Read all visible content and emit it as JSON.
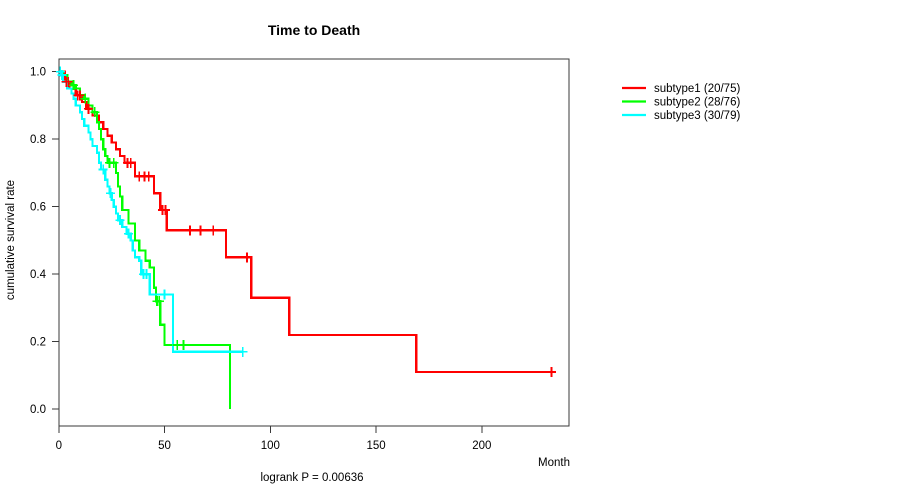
{
  "chart_data": {
    "type": "line",
    "subtype": "kaplan-meier-step-curves",
    "title": "Time to Death",
    "xlabel": "Month",
    "ylabel": "cumulative survival rate",
    "annotation": "logrank P = 0.00636",
    "xlim": [
      0,
      241
    ],
    "ylim": [
      0.0,
      1.0
    ],
    "x_ticks": [
      0,
      50,
      100,
      150,
      200
    ],
    "x_tick_labels": [
      "0",
      "50",
      "100",
      "150",
      "200"
    ],
    "y_ticks": [
      0.0,
      0.2,
      0.4,
      0.6,
      0.8,
      1.0
    ],
    "y_tick_labels": [
      "0.0",
      "0.2",
      "0.4",
      "0.6",
      "0.8",
      "1.0"
    ],
    "grid": false,
    "legend_position": "right-outside",
    "series": [
      {
        "name": "subtype1 (20/75)",
        "color": "#ff0000",
        "start": [
          0,
          1.0
        ],
        "end_time": 233,
        "steps": [
          [
            3,
            0.97
          ],
          [
            5,
            0.95
          ],
          [
            8,
            0.93
          ],
          [
            11,
            0.91
          ],
          [
            13,
            0.89
          ],
          [
            16,
            0.87
          ],
          [
            19,
            0.85
          ],
          [
            21,
            0.83
          ],
          [
            23,
            0.81
          ],
          [
            25,
            0.79
          ],
          [
            27,
            0.77
          ],
          [
            29,
            0.75
          ],
          [
            31,
            0.73
          ],
          [
            36,
            0.69
          ],
          [
            45,
            0.64
          ],
          [
            48,
            0.59
          ],
          [
            51,
            0.53
          ],
          [
            79,
            0.45
          ],
          [
            91,
            0.33
          ],
          [
            109,
            0.22
          ],
          [
            169,
            0.11
          ]
        ],
        "censors": [
          [
            3.5,
            0.97
          ],
          [
            4.5,
            0.97
          ],
          [
            9,
            0.93
          ],
          [
            10,
            0.93
          ],
          [
            14,
            0.89
          ],
          [
            32.5,
            0.73
          ],
          [
            34,
            0.73
          ],
          [
            38,
            0.69
          ],
          [
            40.5,
            0.69
          ],
          [
            42.5,
            0.69
          ],
          [
            49,
            0.59
          ],
          [
            50.5,
            0.59
          ],
          [
            62,
            0.53
          ],
          [
            67,
            0.53
          ],
          [
            73,
            0.53
          ],
          [
            89,
            0.45
          ],
          [
            233,
            0.11
          ]
        ]
      },
      {
        "name": "subtype2 (28/76)",
        "color": "#00ff00",
        "start": [
          0,
          1.0
        ],
        "end_time": 81,
        "steps": [
          [
            2,
            0.99
          ],
          [
            4,
            0.97
          ],
          [
            6,
            0.96
          ],
          [
            8,
            0.95
          ],
          [
            10,
            0.93
          ],
          [
            12,
            0.92
          ],
          [
            14,
            0.9
          ],
          [
            16,
            0.88
          ],
          [
            18,
            0.85
          ],
          [
            19,
            0.83
          ],
          [
            20,
            0.8
          ],
          [
            21,
            0.77
          ],
          [
            22,
            0.75
          ],
          [
            23,
            0.73
          ],
          [
            27,
            0.7
          ],
          [
            28,
            0.66
          ],
          [
            29,
            0.63
          ],
          [
            30,
            0.59
          ],
          [
            33,
            0.55
          ],
          [
            36,
            0.5
          ],
          [
            38,
            0.47
          ],
          [
            41,
            0.44
          ],
          [
            43,
            0.42
          ],
          [
            45,
            0.36
          ],
          [
            46,
            0.32
          ],
          [
            48,
            0.25
          ],
          [
            50,
            0.19
          ],
          [
            81,
            0.0
          ]
        ],
        "censors": [
          [
            7,
            0.96
          ],
          [
            12.5,
            0.92
          ],
          [
            17,
            0.88
          ],
          [
            24,
            0.73
          ],
          [
            26,
            0.73
          ],
          [
            46.5,
            0.32
          ],
          [
            47.5,
            0.32
          ],
          [
            56,
            0.19
          ],
          [
            59,
            0.19
          ]
        ]
      },
      {
        "name": "subtype3 (30/79)",
        "color": "#00ffff",
        "start": [
          0,
          1.0
        ],
        "end_time": 87,
        "steps": [
          [
            1,
            0.99
          ],
          [
            2,
            0.97
          ],
          [
            4,
            0.95
          ],
          [
            6,
            0.935
          ],
          [
            7,
            0.92
          ],
          [
            8,
            0.9
          ],
          [
            10,
            0.88
          ],
          [
            11,
            0.86
          ],
          [
            12,
            0.84
          ],
          [
            14,
            0.82
          ],
          [
            15,
            0.8
          ],
          [
            16,
            0.78
          ],
          [
            18,
            0.76
          ],
          [
            19,
            0.73
          ],
          [
            20,
            0.71
          ],
          [
            22,
            0.68
          ],
          [
            23,
            0.66
          ],
          [
            24,
            0.64
          ],
          [
            25,
            0.62
          ],
          [
            26,
            0.6
          ],
          [
            27,
            0.58
          ],
          [
            28,
            0.56
          ],
          [
            30,
            0.54
          ],
          [
            32,
            0.52
          ],
          [
            34,
            0.5
          ],
          [
            35,
            0.47
          ],
          [
            36,
            0.45
          ],
          [
            38,
            0.44
          ],
          [
            39,
            0.4
          ],
          [
            43,
            0.34
          ],
          [
            54,
            0.17
          ]
        ],
        "censors": [
          [
            0.7,
            1.0
          ],
          [
            1.5,
            0.99
          ],
          [
            21,
            0.71
          ],
          [
            24.5,
            0.64
          ],
          [
            29,
            0.56
          ],
          [
            33,
            0.52
          ],
          [
            40,
            0.4
          ],
          [
            41.5,
            0.4
          ],
          [
            50,
            0.34
          ],
          [
            87,
            0.17
          ]
        ]
      }
    ]
  }
}
